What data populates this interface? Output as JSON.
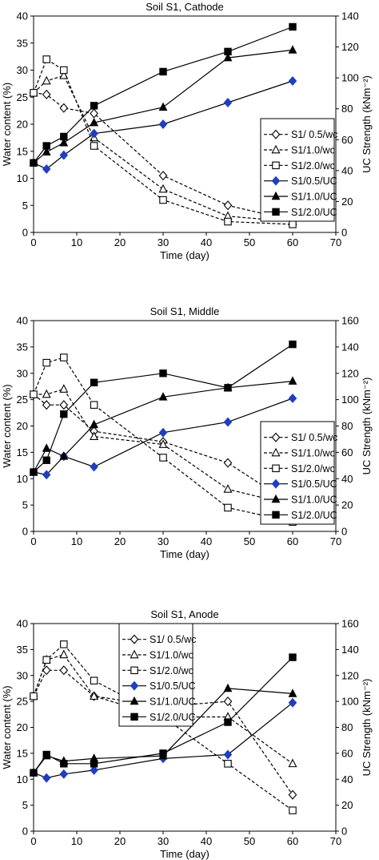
{
  "chart_data": [
    {
      "type": "line",
      "title": "Soil S1, Cathode",
      "xlabel": "Time (day)",
      "ylabel": "Water content (%)",
      "y2label": "UC Strength (kNm⁻²)",
      "xlim": [
        0,
        70
      ],
      "ylim": [
        0,
        40
      ],
      "y2lim": [
        0,
        140
      ],
      "xticks": [
        0,
        10,
        20,
        30,
        40,
        50,
        60,
        70
      ],
      "yticks": [
        0,
        5,
        10,
        15,
        20,
        25,
        30,
        35,
        40
      ],
      "y2ticks": [
        0,
        20,
        40,
        60,
        80,
        100,
        120,
        140
      ],
      "legend_position": "right",
      "series": [
        {
          "name": "S1/ 0.5/wc",
          "axis": "left",
          "dashed": true,
          "marker": "diamond-open",
          "color": "#000000",
          "x": [
            0,
            3,
            7,
            14,
            30,
            45,
            60
          ],
          "y": [
            25.8,
            25.5,
            23,
            22,
            10.5,
            5,
            2.2
          ]
        },
        {
          "name": "S1/1.0/wc",
          "axis": "left",
          "dashed": true,
          "marker": "triangle-open",
          "color": "#000000",
          "x": [
            0,
            3,
            7,
            14,
            30,
            45,
            60
          ],
          "y": [
            25.8,
            28,
            29,
            17.5,
            8,
            3,
            2
          ]
        },
        {
          "name": "S1/2.0/wc",
          "axis": "left",
          "dashed": true,
          "marker": "square-open",
          "color": "#000000",
          "x": [
            0,
            3,
            7,
            14,
            30,
            45,
            60
          ],
          "y": [
            25.8,
            32,
            30,
            16,
            6,
            2,
            1.5
          ]
        },
        {
          "name": "S1/0.5/UC",
          "axis": "right",
          "dashed": false,
          "marker": "diamond",
          "color": "#1f3fbf",
          "x": [
            0,
            3,
            7,
            14,
            30,
            45,
            60
          ],
          "y": [
            45,
            41,
            50,
            64,
            70,
            84,
            98
          ]
        },
        {
          "name": "S1/1.0/UC",
          "axis": "right",
          "dashed": false,
          "marker": "triangle",
          "color": "#000000",
          "x": [
            0,
            3,
            7,
            14,
            30,
            45,
            60
          ],
          "y": [
            45,
            52,
            58,
            71,
            81,
            113,
            118
          ]
        },
        {
          "name": "S1/2.0/UC",
          "axis": "right",
          "dashed": false,
          "marker": "square",
          "color": "#000000",
          "x": [
            0,
            3,
            7,
            14,
            30,
            45,
            60
          ],
          "y": [
            45,
            56,
            62,
            82,
            104,
            117,
            133
          ]
        }
      ]
    },
    {
      "type": "line",
      "title": "Soil S1, Middle",
      "xlabel": "Time (day)",
      "ylabel": "Water content (%)",
      "y2label": "UC Strength (kNm⁻²)",
      "xlim": [
        0,
        70
      ],
      "ylim": [
        0,
        40
      ],
      "y2lim": [
        0,
        160
      ],
      "xticks": [
        0,
        10,
        20,
        30,
        40,
        50,
        60,
        70
      ],
      "yticks": [
        0,
        5,
        10,
        15,
        20,
        25,
        30,
        35,
        40
      ],
      "y2ticks": [
        0,
        20,
        40,
        60,
        80,
        100,
        120,
        140,
        160
      ],
      "legend_position": "right",
      "series": [
        {
          "name": "S1/ 0.5/wc",
          "axis": "left",
          "dashed": true,
          "marker": "diamond-open",
          "color": "#000000",
          "x": [
            0,
            3,
            7,
            14,
            30,
            45,
            60
          ],
          "y": [
            26,
            24,
            24,
            19,
            17,
            13,
            5
          ]
        },
        {
          "name": "S1/1.0/wc",
          "axis": "left",
          "dashed": true,
          "marker": "triangle-open",
          "color": "#000000",
          "x": [
            0,
            3,
            7,
            14,
            30,
            45,
            60
          ],
          "y": [
            26,
            26,
            27,
            18,
            16.5,
            8,
            5
          ]
        },
        {
          "name": "S1/2.0/wc",
          "axis": "left",
          "dashed": true,
          "marker": "square-open",
          "color": "#000000",
          "x": [
            0,
            3,
            7,
            14,
            30,
            45,
            60
          ],
          "y": [
            26,
            32,
            33,
            24,
            14,
            4.5,
            1.8
          ]
        },
        {
          "name": "S1/0.5/UC",
          "axis": "right",
          "dashed": false,
          "marker": "diamond",
          "color": "#1f3fbf",
          "x": [
            0,
            3,
            7,
            14,
            30,
            45,
            60
          ],
          "y": [
            45,
            43,
            57,
            49,
            75,
            83,
            101
          ]
        },
        {
          "name": "S1/1.0/UC",
          "axis": "right",
          "dashed": false,
          "marker": "triangle",
          "color": "#000000",
          "x": [
            0,
            3,
            7,
            14,
            30,
            45,
            60
          ],
          "y": [
            45,
            63,
            57,
            81,
            102,
            109,
            114
          ]
        },
        {
          "name": "S1/2.0/UC",
          "axis": "right",
          "dashed": false,
          "marker": "square",
          "color": "#000000",
          "x": [
            0,
            3,
            7,
            14,
            30,
            45,
            60
          ],
          "y": [
            45,
            54,
            89,
            113,
            120,
            109,
            142
          ]
        }
      ]
    },
    {
      "type": "line",
      "title": "Soil S1, Anode",
      "xlabel": "Time (day)",
      "ylabel": "Water content (%)",
      "y2label": "UC Strength (kNm⁻²)",
      "xlim": [
        0,
        70
      ],
      "ylim": [
        0,
        40
      ],
      "y2lim": [
        0,
        160
      ],
      "xticks": [
        0,
        10,
        20,
        30,
        40,
        50,
        60,
        70
      ],
      "yticks": [
        0,
        5,
        10,
        15,
        20,
        25,
        30,
        35,
        40
      ],
      "y2ticks": [
        0,
        20,
        40,
        60,
        80,
        100,
        120,
        140,
        160
      ],
      "legend_position": "top-left",
      "series": [
        {
          "name": "S1/ 0.5/wc",
          "axis": "left",
          "dashed": true,
          "marker": "diamond-open",
          "color": "#000000",
          "x": [
            0,
            3,
            7,
            14,
            30,
            45,
            60
          ],
          "y": [
            26,
            31,
            31,
            26,
            24,
            25,
            7
          ]
        },
        {
          "name": "S1/1.0/wc",
          "axis": "left",
          "dashed": true,
          "marker": "triangle-open",
          "color": "#000000",
          "x": [
            0,
            3,
            7,
            14,
            30,
            45,
            60
          ],
          "y": [
            26,
            33,
            34,
            26,
            22,
            22,
            13
          ]
        },
        {
          "name": "S1/2.0/wc",
          "axis": "left",
          "dashed": true,
          "marker": "square-open",
          "color": "#000000",
          "x": [
            0,
            3,
            7,
            14,
            30,
            45,
            60
          ],
          "y": [
            26,
            33,
            36,
            29,
            22,
            13,
            4
          ]
        },
        {
          "name": "S1/0.5/UC",
          "axis": "right",
          "dashed": false,
          "marker": "diamond",
          "color": "#1f3fbf",
          "x": [
            0,
            3,
            7,
            14,
            30,
            45,
            60
          ],
          "y": [
            45,
            41,
            44,
            47,
            56,
            59,
            99
          ]
        },
        {
          "name": "S1/1.0/UC",
          "axis": "right",
          "dashed": false,
          "marker": "triangle",
          "color": "#000000",
          "x": [
            0,
            3,
            7,
            14,
            30,
            45,
            60
          ],
          "y": [
            45,
            58,
            54,
            56,
            58,
            110,
            106
          ]
        },
        {
          "name": "S1/2.0/UC",
          "axis": "right",
          "dashed": false,
          "marker": "square",
          "color": "#000000",
          "x": [
            0,
            3,
            7,
            14,
            30,
            45,
            60
          ],
          "y": [
            45,
            59,
            52,
            52,
            60,
            84,
            134
          ]
        }
      ]
    }
  ]
}
